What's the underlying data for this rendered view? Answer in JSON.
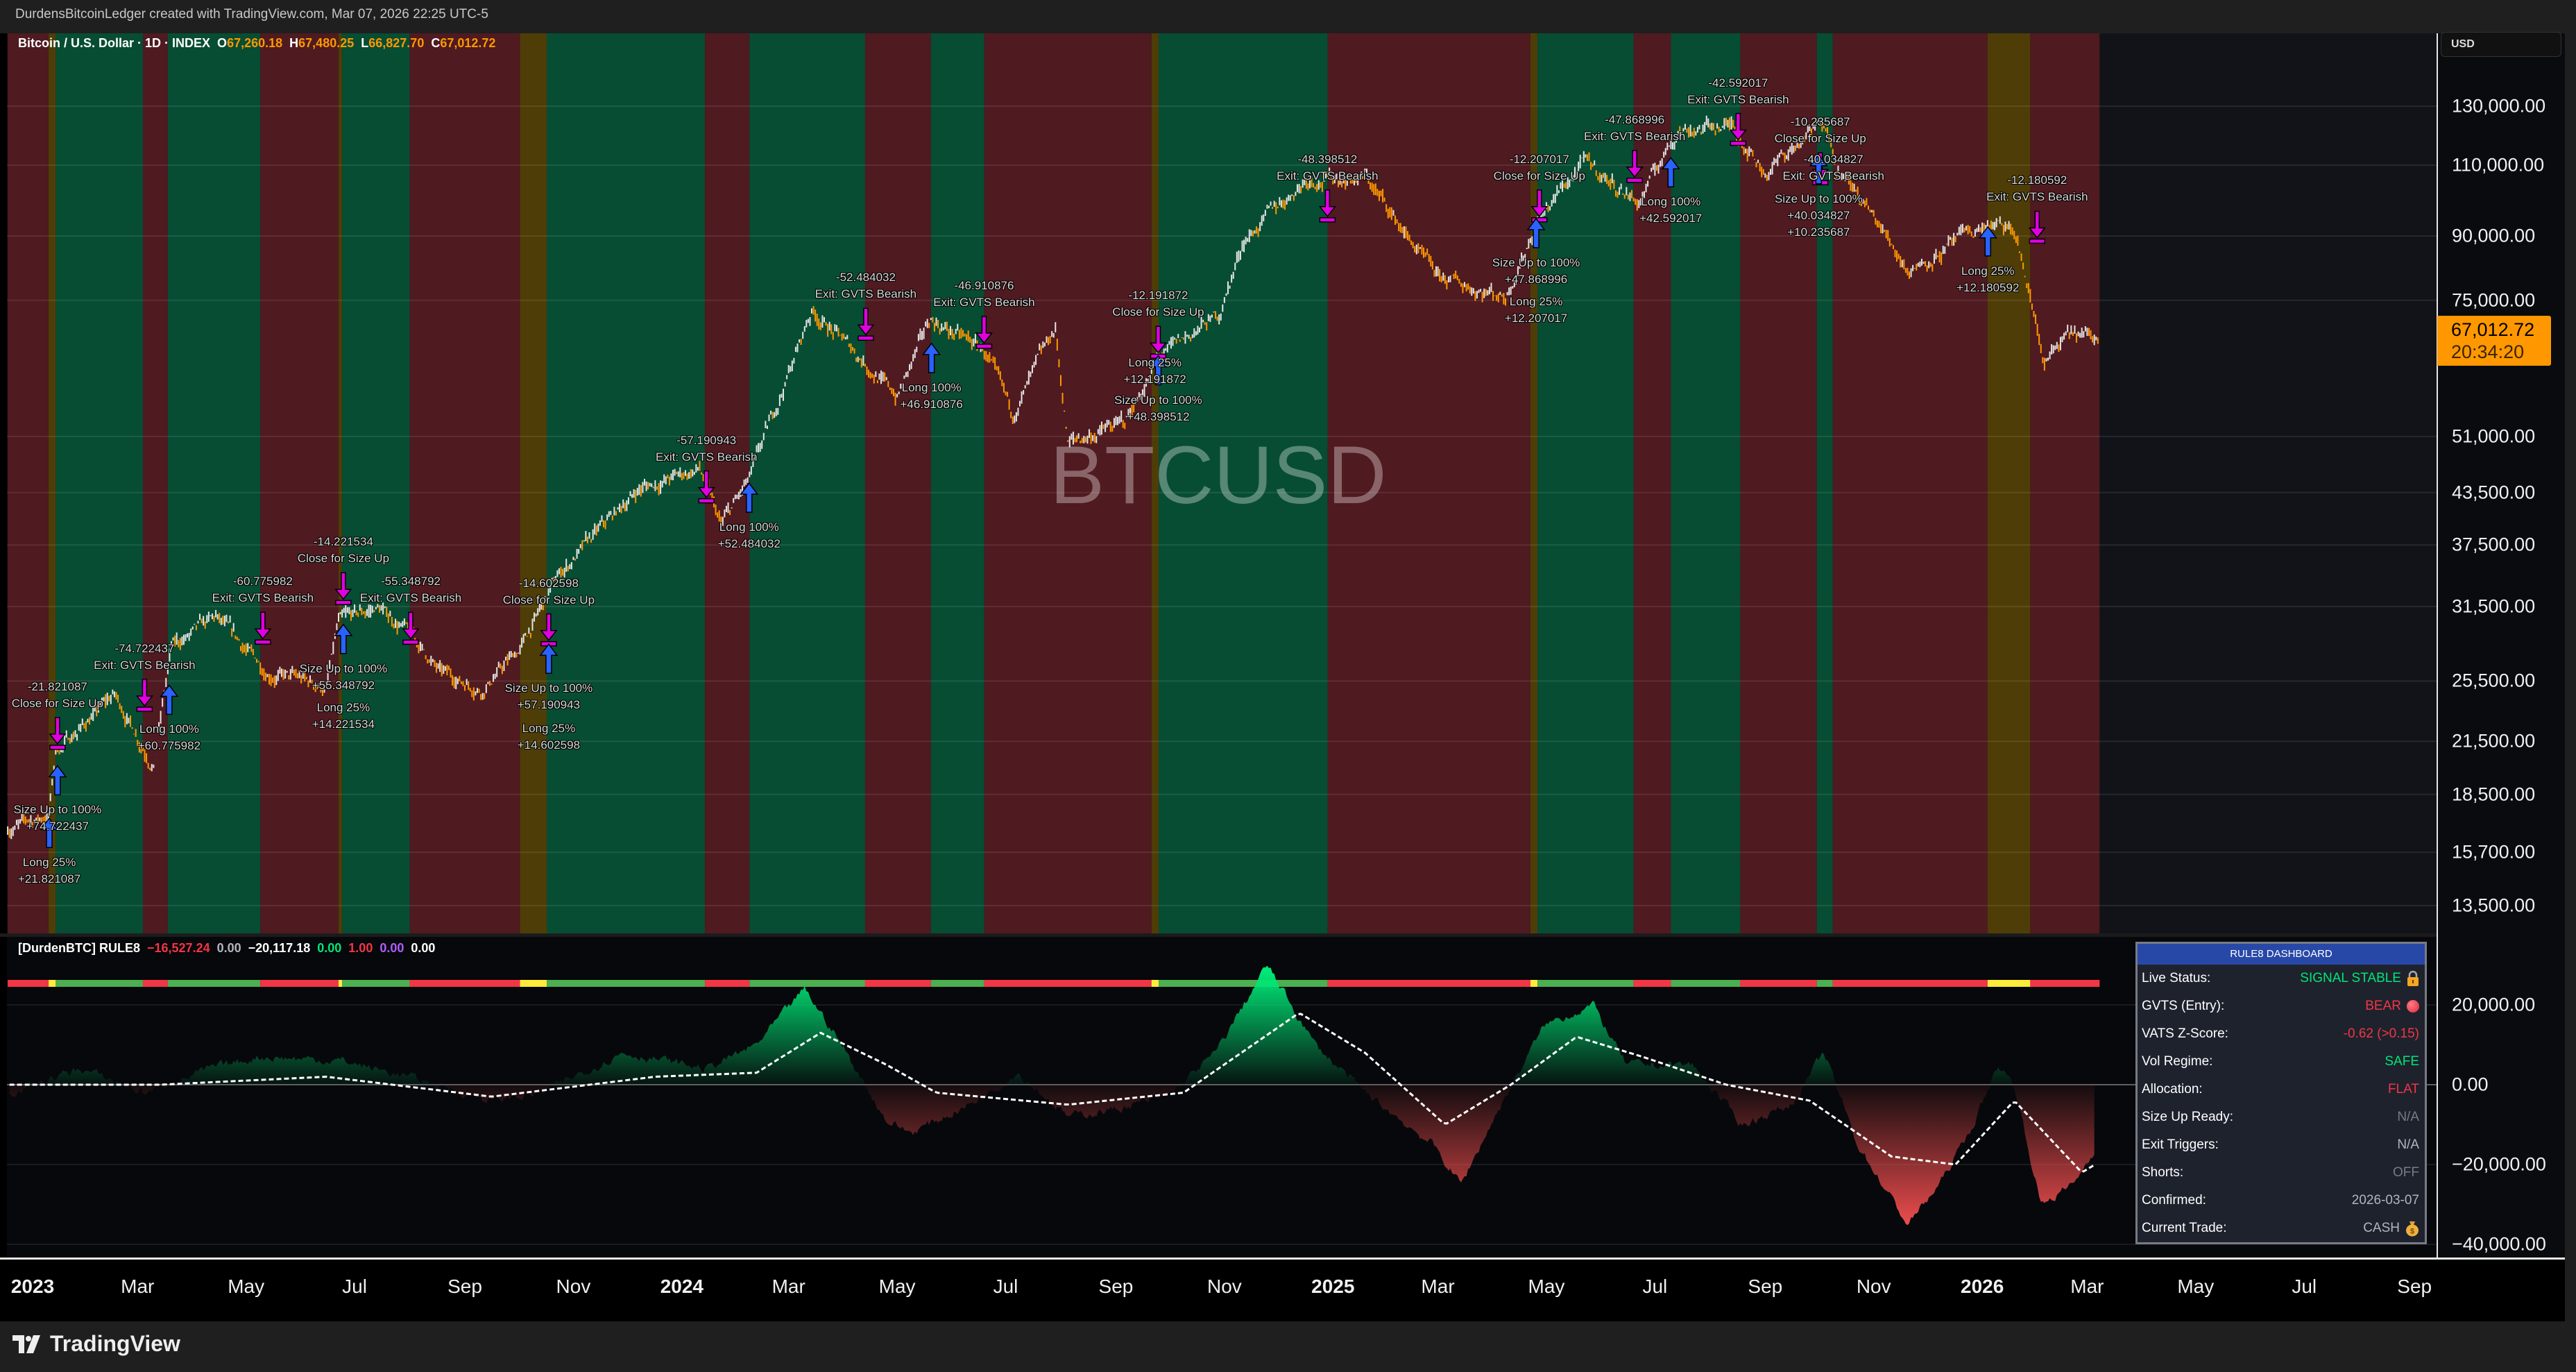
{
  "header": {
    "title": "DurdensBitcoinLedger created with TradingView.com, Mar 07, 2026 22:25 UTC-5"
  },
  "symbol_legend": {
    "name": "Bitcoin / U.S. Dollar · 1D · INDEX",
    "o_label": "O",
    "o": "67,260.18",
    "h_label": "H",
    "h": "67,480.25",
    "l_label": "L",
    "l": "66,827.70",
    "c_label": "C",
    "c": "67,012.72"
  },
  "watermark": "BTCUSD",
  "price_axis": {
    "currency": "USD",
    "ticks": [
      "130,000.00",
      "110,000.00",
      "90,000.00",
      "75,000.00",
      "51,000.00",
      "43,500.00",
      "37,500.00",
      "31,500.00",
      "25,500.00",
      "21,500.00",
      "18,500.00",
      "15,700.00",
      "13,500.00"
    ],
    "last_price": "67,012.72",
    "countdown": "20:34:20",
    "last_color": "#ff9800"
  },
  "indicator_legend": {
    "name": "[DurdenBTC] RULE8",
    "values": [
      {
        "v": "−16,527.24",
        "color": "#f23645"
      },
      {
        "v": "0.00",
        "color": "#b2b5be"
      },
      {
        "v": "−20,117.18",
        "color": "#ffffff"
      },
      {
        "v": "0.00",
        "color": "#00e676"
      },
      {
        "v": "1.00",
        "color": "#f23645"
      },
      {
        "v": "0.00",
        "color": "#b05cff"
      },
      {
        "v": "0.00",
        "color": "#ffffff"
      }
    ]
  },
  "indicator_axis": {
    "ticks": [
      "20,000.00",
      "0.00",
      "−20,000.00",
      "−40,000.00"
    ]
  },
  "time_axis": [
    {
      "t": "2023",
      "year": true,
      "d": "2023-01-01"
    },
    {
      "t": "Mar",
      "d": "2023-03-01"
    },
    {
      "t": "May",
      "d": "2023-05-01"
    },
    {
      "t": "Jul",
      "d": "2023-07-01"
    },
    {
      "t": "Sep",
      "d": "2023-09-01"
    },
    {
      "t": "Nov",
      "d": "2023-11-01"
    },
    {
      "t": "2024",
      "year": true,
      "d": "2024-01-01"
    },
    {
      "t": "Mar",
      "d": "2024-03-01"
    },
    {
      "t": "May",
      "d": "2024-05-01"
    },
    {
      "t": "Jul",
      "d": "2024-07-01"
    },
    {
      "t": "Sep",
      "d": "2024-09-01"
    },
    {
      "t": "Nov",
      "d": "2024-11-01"
    },
    {
      "t": "2025",
      "year": true,
      "d": "2025-01-01"
    },
    {
      "t": "Mar",
      "d": "2025-03-01"
    },
    {
      "t": "May",
      "d": "2025-05-01"
    },
    {
      "t": "Jul",
      "d": "2025-07-01"
    },
    {
      "t": "Sep",
      "d": "2025-09-01"
    },
    {
      "t": "Nov",
      "d": "2025-11-01"
    },
    {
      "t": "2026",
      "year": true,
      "d": "2026-01-01"
    },
    {
      "t": "Mar",
      "d": "2026-03-01"
    },
    {
      "t": "May",
      "d": "2026-05-01"
    },
    {
      "t": "Jul",
      "d": "2026-07-01"
    },
    {
      "t": "Sep",
      "d": "2026-09-01"
    }
  ],
  "dashboard": {
    "title": "RULE8 DASHBOARD",
    "rows": [
      {
        "label": "Live Status:",
        "value": "SIGNAL STABLE",
        "color": "#00e676",
        "icon": "lock-icon"
      },
      {
        "label": "GVTS (Entry):",
        "value": "BEAR",
        "color": "#f23645",
        "icon": "red-circle-icon"
      },
      {
        "label": "VATS Z-Score:",
        "value": "-0.62 (>0.15)",
        "color": "#f23645"
      },
      {
        "label": "Vol Regime:",
        "value": "SAFE",
        "color": "#00e676"
      },
      {
        "label": "Allocation:",
        "value": "FLAT",
        "color": "#f23645"
      },
      {
        "label": "Size Up Ready:",
        "value": "N/A",
        "color": "#787b86"
      },
      {
        "label": "Exit Triggers:",
        "value": "N/A",
        "color": "#b2b5be"
      },
      {
        "label": "Shorts:",
        "value": "OFF",
        "color": "#787b86"
      },
      {
        "label": "Confirmed:",
        "value": "2026-03-07",
        "color": "#b2b5be"
      },
      {
        "label": "Current Trade:",
        "value": "CASH",
        "color": "#b2b5be",
        "icon": "money-bag-icon"
      }
    ]
  },
  "footer": {
    "brand": "TradingView"
  },
  "annotations": [
    [
      "-21.821087",
      "Close for Size Up"
    ],
    [
      "-74.722437",
      "Exit: GVTS Bearish"
    ],
    [
      "Long 100%",
      "+60.775982"
    ],
    [
      "Size Up to 100%",
      "+74.722437"
    ],
    [
      "Long 25%",
      "+21.821087"
    ],
    [
      "-60.775982",
      "Exit: GVTS Bearish"
    ],
    [
      "-14.221534",
      "Close for Size Up"
    ],
    [
      "-55.348792",
      "Exit: GVTS Bearish"
    ],
    [
      "Size Up to 100%",
      "+55.348792"
    ],
    [
      "Long 25%",
      "+14.221534"
    ],
    [
      "-14.602598",
      "Close for Size Up"
    ],
    [
      "Size Up to 100%",
      "+57.190943"
    ],
    [
      "Long 25%",
      "+14.602598"
    ],
    [
      "-57.190943",
      "Exit: GVTS Bearish"
    ],
    [
      "Long 100%",
      "+52.484032"
    ],
    [
      "-52.484032",
      "Exit: GVTS Bearish"
    ],
    [
      "Long 100%",
      "+46.910876"
    ],
    [
      "-46.910876",
      "Exit: GVTS Bearish"
    ],
    [
      "-12.191872",
      "Close for Size Up"
    ],
    [
      "Size Up to 100%",
      "+48.398512"
    ],
    [
      "Long 25%",
      "+12.191872"
    ],
    [
      "-48.398512",
      "Exit: GVTS Bearish"
    ],
    [
      "-12.207017",
      "Close for Size Up"
    ],
    [
      "Size Up to 100%",
      "+47.868996"
    ],
    [
      "Long 25%",
      "+12.207017"
    ],
    [
      "-47.868996",
      "Exit: GVTS Bearish"
    ],
    [
      "Long 100%",
      "+42.592017"
    ],
    [
      "-42.592017",
      "Exit: GVTS Bearish"
    ],
    [
      "-10.235687",
      "Close for Size Up"
    ],
    [
      "-40.034827",
      "Exit: GVTS Bearish"
    ],
    [
      "Size Up to 100%",
      "+40.034827",
      "+10.235687"
    ],
    [
      "Long 25%",
      "+12.180592"
    ],
    [
      "-12.180592",
      "Exit: GVTS Bearish"
    ]
  ],
  "chart_data": {
    "type": "candlestick",
    "scale": "log",
    "grid": true,
    "regime_colors": {
      "bull": "#074d33",
      "bear": "#4f1a20",
      "neutral": "#4e3d07"
    },
    "regimes": [
      [
        "2022-12-18",
        "2023-01-10",
        "bear"
      ],
      [
        "2023-01-10",
        "2023-01-14",
        "neutral"
      ],
      [
        "2023-01-14",
        "2023-03-04",
        "bull"
      ],
      [
        "2023-03-04",
        "2023-03-18",
        "bear"
      ],
      [
        "2023-03-18",
        "2023-05-09",
        "bull"
      ],
      [
        "2023-05-09",
        "2023-06-22",
        "bear"
      ],
      [
        "2023-06-22",
        "2023-06-24",
        "neutral"
      ],
      [
        "2023-06-24",
        "2023-08-01",
        "bull"
      ],
      [
        "2023-08-01",
        "2023-10-02",
        "bear"
      ],
      [
        "2023-10-02",
        "2023-10-17",
        "neutral"
      ],
      [
        "2023-10-17",
        "2024-01-14",
        "bull"
      ],
      [
        "2024-01-14",
        "2024-02-08",
        "bear"
      ],
      [
        "2024-02-08",
        "2024-04-13",
        "bull"
      ],
      [
        "2024-04-13",
        "2024-05-20",
        "bear"
      ],
      [
        "2024-05-20",
        "2024-06-19",
        "bull"
      ],
      [
        "2024-06-19",
        "2024-09-21",
        "bear"
      ],
      [
        "2024-09-21",
        "2024-09-25",
        "neutral"
      ],
      [
        "2024-09-25",
        "2024-12-29",
        "bull"
      ],
      [
        "2024-12-29",
        "2025-04-22",
        "bear"
      ],
      [
        "2025-04-22",
        "2025-04-26",
        "neutral"
      ],
      [
        "2025-04-26",
        "2025-06-19",
        "bull"
      ],
      [
        "2025-06-19",
        "2025-07-10",
        "bear"
      ],
      [
        "2025-07-10",
        "2025-08-18",
        "bull"
      ],
      [
        "2025-08-18",
        "2025-09-30",
        "bear"
      ],
      [
        "2025-09-30",
        "2025-10-09",
        "bull"
      ],
      [
        "2025-10-09",
        "2026-01-04",
        "bear"
      ],
      [
        "2026-01-04",
        "2026-01-28",
        "neutral"
      ],
      [
        "2026-01-28",
        "2026-03-08",
        "bear"
      ]
    ],
    "price": [
      [
        "2022-12-18",
        16800
      ],
      [
        "2023-01-10",
        17400
      ],
      [
        "2023-01-14",
        20900
      ],
      [
        "2023-02-16",
        24500
      ],
      [
        "2023-03-10",
        20200
      ],
      [
        "2023-03-20",
        28000
      ],
      [
        "2023-04-14",
        30400
      ],
      [
        "2023-05-12",
        26300
      ],
      [
        "2023-06-15",
        25000
      ],
      [
        "2023-06-22",
        30000
      ],
      [
        "2023-07-14",
        31400
      ],
      [
        "2023-08-01",
        29300
      ],
      [
        "2023-08-18",
        26100
      ],
      [
        "2023-09-11",
        25000
      ],
      [
        "2023-10-02",
        27900
      ],
      [
        "2023-10-24",
        34500
      ],
      [
        "2023-12-08",
        44000
      ],
      [
        "2024-01-11",
        46500
      ],
      [
        "2024-01-23",
        39500
      ],
      [
        "2024-02-08",
        45000
      ],
      [
        "2024-03-14",
        73000
      ],
      [
        "2024-04-13",
        63000
      ],
      [
        "2024-05-01",
        57000
      ],
      [
        "2024-05-20",
        71000
      ],
      [
        "2024-06-19",
        65000
      ],
      [
        "2024-07-05",
        54000
      ],
      [
        "2024-07-29",
        69000
      ],
      [
        "2024-08-05",
        50000
      ],
      [
        "2024-09-06",
        53000
      ],
      [
        "2024-09-25",
        63500
      ],
      [
        "2024-10-29",
        72000
      ],
      [
        "2024-11-12",
        89000
      ],
      [
        "2024-12-17",
        106000
      ],
      [
        "2025-01-20",
        106000
      ],
      [
        "2025-02-28",
        80000
      ],
      [
        "2025-04-08",
        76000
      ],
      [
        "2025-04-26",
        94000
      ],
      [
        "2025-05-22",
        111000
      ],
      [
        "2025-06-22",
        99000
      ],
      [
        "2025-07-14",
        122000
      ],
      [
        "2025-08-14",
        123000
      ],
      [
        "2025-09-01",
        108000
      ],
      [
        "2025-10-06",
        125000
      ],
      [
        "2025-10-11",
        110000
      ],
      [
        "2025-11-21",
        82000
      ],
      [
        "2026-01-05",
        93000
      ],
      [
        "2026-01-20",
        90000
      ],
      [
        "2026-02-05",
        63000
      ],
      [
        "2026-02-20",
        68000
      ],
      [
        "2026-03-07",
        67012.72
      ]
    ],
    "oscillator": [
      [
        "2022-12-19",
        -2000
      ],
      [
        "2023-01-28",
        4000
      ],
      [
        "2023-03-05",
        -2000
      ],
      [
        "2023-04-11",
        4000
      ],
      [
        "2023-05-09",
        7000
      ],
      [
        "2023-06-24",
        6000
      ],
      [
        "2023-07-31",
        2000
      ],
      [
        "2023-09-16",
        -4000
      ],
      [
        "2023-10-14",
        -2000
      ],
      [
        "2023-11-29",
        8000
      ],
      [
        "2024-01-15",
        4000
      ],
      [
        "2024-02-12",
        10000
      ],
      [
        "2024-03-10",
        24000
      ],
      [
        "2024-03-28",
        12000
      ],
      [
        "2024-04-25",
        -9000
      ],
      [
        "2024-05-09",
        -12000
      ],
      [
        "2024-06-11",
        -5000
      ],
      [
        "2024-07-08",
        3000
      ],
      [
        "2024-08-05",
        -8000
      ],
      [
        "2024-09-02",
        -6000
      ],
      [
        "2024-09-30",
        -3000
      ],
      [
        "2024-10-27",
        8000
      ],
      [
        "2024-11-25",
        30000
      ],
      [
        "2024-12-22",
        10000
      ],
      [
        "2025-01-19",
        -2000
      ],
      [
        "2025-02-26",
        -15000
      ],
      [
        "2025-03-14",
        -25000
      ],
      [
        "2025-04-02",
        -8000
      ],
      [
        "2025-04-30",
        15000
      ],
      [
        "2025-05-27",
        20000
      ],
      [
        "2025-06-15",
        5000
      ],
      [
        "2025-07-22",
        5000
      ],
      [
        "2025-08-19",
        -10000
      ],
      [
        "2025-09-16",
        -5000
      ],
      [
        "2025-10-04",
        8000
      ],
      [
        "2025-10-23",
        -15000
      ],
      [
        "2025-11-20",
        -35000
      ],
      [
        "2025-12-08",
        -25000
      ],
      [
        "2025-12-27",
        -10000
      ],
      [
        "2026-01-10",
        5000
      ],
      [
        "2026-01-19",
        0
      ],
      [
        "2026-02-03",
        -30000
      ],
      [
        "2026-02-21",
        -25000
      ],
      [
        "2026-03-05",
        -16527.24
      ]
    ],
    "signal": [
      [
        "2022-12-19",
        0
      ],
      [
        "2023-03-14",
        0
      ],
      [
        "2023-06-15",
        2000
      ],
      [
        "2023-09-16",
        -3000
      ],
      [
        "2023-12-17",
        2000
      ],
      [
        "2024-02-12",
        3000
      ],
      [
        "2024-03-19",
        13000
      ],
      [
        "2024-04-25",
        5000
      ],
      [
        "2024-05-23",
        -2000
      ],
      [
        "2024-08-05",
        -5000
      ],
      [
        "2024-10-09",
        -2000
      ],
      [
        "2024-12-13",
        18000
      ],
      [
        "2025-01-19",
        8000
      ],
      [
        "2025-03-05",
        -10000
      ],
      [
        "2025-04-11",
        0
      ],
      [
        "2025-05-18",
        12000
      ],
      [
        "2025-06-24",
        7000
      ],
      [
        "2025-08-10",
        0
      ],
      [
        "2025-09-26",
        -4000
      ],
      [
        "2025-11-11",
        -18000
      ],
      [
        "2025-12-17",
        -20000
      ],
      [
        "2026-01-19",
        -4000
      ],
      [
        "2026-02-26",
        -22000
      ],
      [
        "2026-03-05",
        -20117.18
      ]
    ],
    "status_colors": {
      "bull": "#4caf50",
      "bear": "#f23645",
      "neutral": "#ffeb3b"
    },
    "oscillator_colors": {
      "positive": "#00e676",
      "negative": "#ff5252",
      "signal": "#ffffff"
    }
  }
}
